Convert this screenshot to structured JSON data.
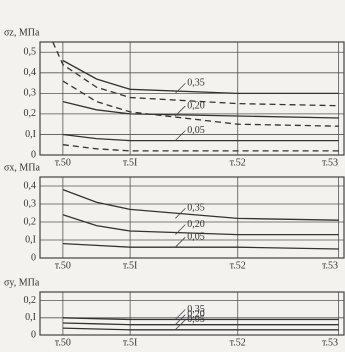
{
  "chart_data": [
    {
      "type": "line",
      "title": "σz, МПа",
      "x": [
        -0.15,
        0,
        0.5,
        1,
        2.6,
        4.1
      ],
      "xlim": [
        -0.34,
        4.18
      ],
      "xticks": [
        {
          "value": 0,
          "label": "т.50"
        },
        {
          "value": 1,
          "label": "т.5I"
        },
        {
          "value": 2.6,
          "label": "т.52"
        },
        {
          "value": 4.1,
          "label": "т.53"
        }
      ],
      "ylim": [
        0,
        0.55
      ],
      "yticks": [
        0,
        {
          "value": 0.1,
          "label": "0,I"
        },
        {
          "value": 0.2,
          "label": "0,2"
        },
        {
          "value": 0.3,
          "label": "0,3"
        },
        {
          "value": 0.4,
          "label": "0,4"
        },
        {
          "value": 0.5,
          "label": "0,5"
        }
      ],
      "grid": true,
      "series": [
        {
          "name": "0,35",
          "color": "#333",
          "line_style": "solid",
          "values": [
            null,
            0.46,
            0.37,
            0.32,
            0.3,
            0.3
          ]
        },
        {
          "color": "#333",
          "line_style": "dashed",
          "values": [
            0.55,
            0.44,
            0.33,
            0.28,
            0.25,
            0.24
          ]
        },
        {
          "name": "0,20",
          "color": "#333",
          "line_style": "solid",
          "values": [
            null,
            0.26,
            0.22,
            0.2,
            0.19,
            0.18
          ]
        },
        {
          "color": "#333",
          "line_style": "dashed",
          "values": [
            null,
            0.36,
            0.26,
            0.21,
            0.15,
            0.14
          ]
        },
        {
          "name": "0,05",
          "color": "#333",
          "line_style": "solid",
          "values": [
            null,
            0.1,
            0.08,
            0.07,
            0.07,
            0.07
          ]
        },
        {
          "color": "#333",
          "line_style": "dashed",
          "values": [
            null,
            0.05,
            0.03,
            0.02,
            0.02,
            0.02
          ]
        }
      ]
    },
    {
      "type": "line",
      "title": "σx, МПа",
      "x": [
        0,
        0.5,
        1,
        2.6,
        4.1
      ],
      "xlim": [
        -0.34,
        4.18
      ],
      "xticks": [
        {
          "value": 0,
          "label": "т.50"
        },
        {
          "value": 1,
          "label": "т.5I"
        },
        {
          "value": 2.6,
          "label": "т.52"
        },
        {
          "value": 4.1,
          "label": "т.53"
        }
      ],
      "ylim": [
        0,
        0.45
      ],
      "yticks": [
        0,
        {
          "value": 0.1,
          "label": "0,I"
        },
        {
          "value": 0.2,
          "label": "0,2"
        },
        {
          "value": 0.3,
          "label": "0,3"
        },
        {
          "value": 0.4,
          "label": "0,4"
        }
      ],
      "grid": true,
      "series": [
        {
          "name": "0,35",
          "color": "#333",
          "line_style": "solid",
          "values": [
            0.38,
            0.31,
            0.27,
            0.22,
            0.21
          ]
        },
        {
          "name": "0,20",
          "color": "#333",
          "line_style": "solid",
          "values": [
            0.24,
            0.18,
            0.15,
            0.13,
            0.13
          ]
        },
        {
          "name": "0,05",
          "color": "#333",
          "line_style": "solid",
          "values": [
            0.08,
            0.07,
            0.06,
            0.06,
            0.05
          ]
        }
      ]
    },
    {
      "type": "line",
      "title": "σy, МПа",
      "x": [
        0,
        0.5,
        1,
        2.6,
        4.1
      ],
      "xlim": [
        -0.34,
        4.18
      ],
      "xticks": [
        {
          "value": 0,
          "label": "т.50"
        },
        {
          "value": 1,
          "label": "т.5I"
        },
        {
          "value": 2.6,
          "label": "т.52"
        },
        {
          "value": 4.1,
          "label": "т.53"
        }
      ],
      "ylim": [
        0,
        0.25
      ],
      "yticks": [
        0,
        {
          "value": 0.1,
          "label": "0,I"
        },
        {
          "value": 0.2,
          "label": "0,2"
        }
      ],
      "grid": true,
      "series": [
        {
          "name": "0,35",
          "color": "#333",
          "line_style": "solid",
          "values": [
            0.1,
            0.095,
            0.09,
            0.09,
            0.09
          ]
        },
        {
          "name": "0,20",
          "color": "#333",
          "line_style": "solid",
          "values": [
            0.07,
            0.065,
            0.06,
            0.06,
            0.06
          ]
        },
        {
          "name": "0,05",
          "color": "#333",
          "line_style": "solid",
          "values": [
            0.04,
            0.035,
            0.03,
            0.03,
            0.03
          ]
        }
      ]
    }
  ]
}
